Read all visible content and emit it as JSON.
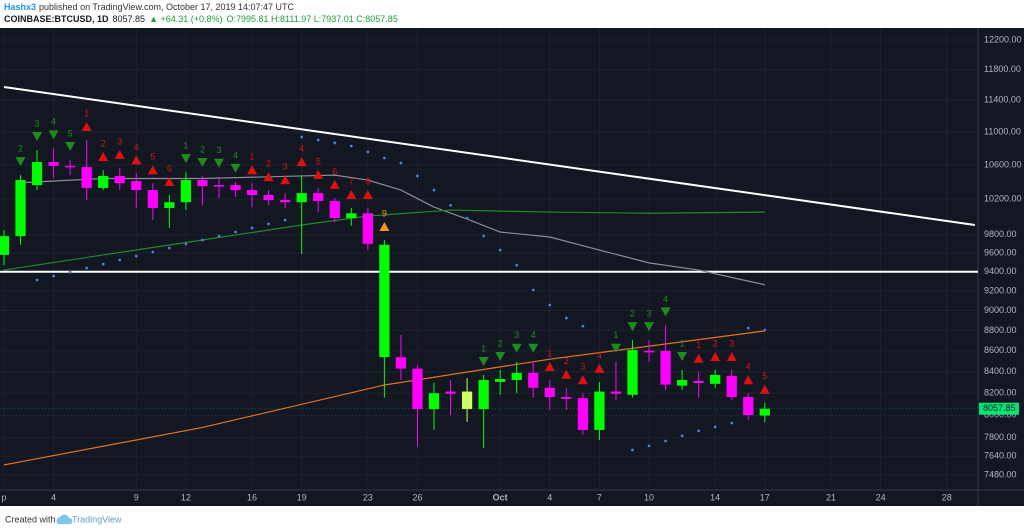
{
  "header": {
    "author": "Hashx3",
    "published": "published on TradingView.com, October 17, 2019 14:07:47 UTC",
    "symbol": "COINBASE:BTCUSD, 1D",
    "last": "8057.85",
    "change": "▲ +64.31 (+0.8%)",
    "ohlc": "O:7995.81 H:8111.97 L:7937.01 C:8057.85"
  },
  "footer": {
    "created": "Created with",
    "brand": "TradingView"
  },
  "chart_data": {
    "type": "candlestick",
    "log_scale": true,
    "grid": true,
    "xlim": [
      -0.24,
      58.89
    ],
    "xticks": [
      {
        "value": 0,
        "label": "p"
      },
      {
        "value": 3,
        "label": "4"
      },
      {
        "value": 8,
        "label": "9"
      },
      {
        "value": 11,
        "label": "12"
      },
      {
        "value": 15,
        "label": "16"
      },
      {
        "value": 18,
        "label": "19"
      },
      {
        "value": 22,
        "label": "23"
      },
      {
        "value": 25,
        "label": "26"
      },
      {
        "value": 30,
        "label": "Oct"
      },
      {
        "value": 33,
        "label": "4"
      },
      {
        "value": 36,
        "label": "7"
      },
      {
        "value": 39,
        "label": "10"
      },
      {
        "value": 43,
        "label": "14"
      },
      {
        "value": 46,
        "label": "17"
      },
      {
        "value": 50,
        "label": "21"
      },
      {
        "value": 53,
        "label": "24"
      },
      {
        "value": 57,
        "label": "28"
      }
    ],
    "ylim": [
      7354,
      12366
    ],
    "yticks": [
      {
        "value": 12200,
        "label": "12200.00"
      },
      {
        "value": 11800,
        "label": "11800.00"
      },
      {
        "value": 11400,
        "label": "11400.00"
      },
      {
        "value": 11000,
        "label": "11000.00"
      },
      {
        "value": 10600,
        "label": "10600.00"
      },
      {
        "value": 10200,
        "label": "10200.00"
      },
      {
        "value": 9800,
        "label": "9800.00"
      },
      {
        "value": 9600,
        "label": "9600.00"
      },
      {
        "value": 9400,
        "label": "9400.00"
      },
      {
        "value": 9200,
        "label": "9200.00"
      },
      {
        "value": 9000,
        "label": "9000.00"
      },
      {
        "value": 8800,
        "label": "8800.00"
      },
      {
        "value": 8600,
        "label": "8600.00"
      },
      {
        "value": 8400,
        "label": "8400.00"
      },
      {
        "value": 8200,
        "label": "8200.00"
      },
      {
        "value": 8000,
        "label": "8000.00"
      },
      {
        "value": 7800,
        "label": "7800.00"
      },
      {
        "value": 7640,
        "label": "7640.00"
      },
      {
        "value": 7480,
        "label": "7480.00"
      }
    ],
    "x": [
      0,
      1,
      2,
      3,
      4,
      5,
      6,
      7,
      8,
      9,
      10,
      11,
      12,
      13,
      14,
      15,
      16,
      17,
      18,
      19,
      20,
      21,
      22,
      23,
      24,
      25,
      26,
      27,
      28,
      29,
      30,
      31,
      32,
      33,
      34,
      35,
      36,
      37,
      38,
      39,
      40,
      41,
      42,
      43,
      44,
      45,
      46
    ],
    "open": [
      9580,
      9785,
      10363,
      10635,
      10590,
      10575,
      10330,
      10470,
      10410,
      10305,
      10100,
      10165,
      10422,
      10363,
      10363,
      10305,
      10248,
      10190,
      10165,
      10270,
      10180,
      9985,
      10040,
      9690,
      8540,
      8430,
      8055,
      8215,
      8215,
      8055,
      8305,
      8323,
      8390,
      8250,
      8165,
      8155,
      7868,
      8215,
      8185,
      8600,
      8600,
      8270,
      8314,
      8287,
      8360,
      8165,
      7995.81
    ],
    "high": [
      9852,
      10480,
      10780,
      10800,
      10659,
      10902,
      10540,
      10565,
      10500,
      10385,
      10248,
      10515,
      10470,
      10460,
      10400,
      10385,
      10305,
      10270,
      10480,
      10330,
      10215,
      10100,
      10100,
      9742,
      8755,
      8465,
      8295,
      8323,
      8340,
      8370,
      8417,
      8495,
      8495,
      8323,
      8250,
      8200,
      8305,
      8495,
      8705,
      8705,
      8850,
      8417,
      8400,
      8417,
      8417,
      8200,
      8111.97
    ],
    "low": [
      9470,
      9690,
      10305,
      10445,
      10480,
      10190,
      10305,
      10305,
      10100,
      9963,
      9875,
      10076,
      10130,
      10215,
      10225,
      10110,
      10130,
      10100,
      9590,
      10050,
      9940,
      9900,
      9633,
      8160,
      8323,
      7720,
      7868,
      8000,
      7940,
      7710,
      8185,
      8200,
      8160,
      8047,
      8047,
      7825,
      7780,
      8138,
      8160,
      8495,
      8230,
      8230,
      8160,
      8250,
      8138,
      7957,
      7937.01
    ],
    "close": [
      9785,
      10422,
      10635,
      10590,
      10575,
      10330,
      10470,
      10385,
      10305,
      10100,
      10165,
      10422,
      10350,
      10350,
      10305,
      10248,
      10190,
      10165,
      10270,
      10180,
      9985,
      10040,
      9700,
      8540,
      8430,
      8055,
      8200,
      8195,
      8055,
      8323,
      8332,
      8390,
      8250,
      8165,
      8148,
      7868,
      8215,
      8195,
      8608,
      8590,
      8280,
      8323,
      8295,
      8370,
      8165,
      8000,
      8057.85
    ],
    "colors": [
      "#00ff00",
      "#00ff00",
      "#00ff00",
      "#ff00ff",
      "#ff00ff",
      "#ff00ff",
      "#00ff00",
      "#ff00ff",
      "#ff00ff",
      "#ff00ff",
      "#00ff00",
      "#00ff00",
      "#ff00ff",
      "#ff00ff",
      "#ff00ff",
      "#ff00ff",
      "#ff00ff",
      "#ff00ff",
      "#00ff00",
      "#ff00ff",
      "#ff00ff",
      "#00ff00",
      "#ff00ff",
      "#00ff00",
      "#ff00ff",
      "#ff00ff",
      "#00ff00",
      "#ff00ff",
      "#ccff66",
      "#00ff00",
      "#00ff00",
      "#00ff00",
      "#ff00ff",
      "#ff00ff",
      "#ff00ff",
      "#ff00ff",
      "#00ff00",
      "#ff00ff",
      "#00ff00",
      "#ff00ff",
      "#ff00ff",
      "#00ff00",
      "#ff00ff",
      "#00ff00",
      "#ff00ff",
      "#ff00ff",
      "#00ff00"
    ],
    "last_price_color": "#00e676",
    "lines": [
      {
        "color": "#ffffff",
        "x": [
          0,
          58.7
        ],
        "values": [
          11572,
          9908
        ]
      },
      {
        "color": "#ffffff",
        "x": [
          -0.24,
          58.89
        ],
        "values": [
          9400,
          9400
        ]
      },
      {
        "color": "#8a8d96",
        "x": [
          1,
          6,
          12,
          18,
          20,
          22,
          24,
          26,
          28,
          30,
          33,
          36,
          39,
          42,
          45,
          46
        ],
        "values": [
          10390,
          10440,
          10440,
          10470,
          10480,
          10422,
          10305,
          10110,
          9975,
          9830,
          9775,
          9633,
          9495,
          9418,
          9302,
          9264
        ]
      },
      {
        "color": "#1f8a2a",
        "x": [
          0,
          6,
          12,
          18,
          22,
          27,
          33,
          39,
          46
        ],
        "values": [
          9418,
          9580,
          9742,
          9908,
          10008,
          10076,
          10053,
          10040,
          10053
        ]
      },
      {
        "color": "#e8731f",
        "x": [
          0,
          12,
          23,
          33,
          46
        ],
        "values": [
          7564,
          7890,
          8276,
          8520,
          8795
        ]
      }
    ],
    "sar": {
      "color": "#4a7fd6",
      "x": [
        2,
        3,
        4,
        5,
        6,
        7,
        8,
        9,
        10,
        11,
        12,
        13,
        14,
        15,
        16,
        17,
        18,
        19,
        20,
        21,
        22,
        23,
        24,
        25,
        26,
        27,
        28,
        29,
        30,
        31,
        32,
        33,
        34,
        35,
        38,
        39,
        40,
        41,
        42,
        43,
        44,
        45,
        46
      ],
      "values": [
        9313,
        9355,
        9397,
        9440,
        9482,
        9525,
        9568,
        9612,
        9655,
        9698,
        9742,
        9786,
        9830,
        9875,
        9920,
        9963,
        10939,
        10902,
        10866,
        10829,
        10757,
        10683,
        10624,
        10470,
        10305,
        10130,
        9985,
        9786,
        9633,
        9471,
        9209,
        9055,
        8923,
        8843,
        7693,
        7728,
        7771,
        7816,
        7860,
        7895,
        7930,
        8824,
        8804
      ]
    },
    "td": {
      "down_color": "#1e8c1e",
      "labels": [
        null,
        "2",
        "3",
        "4",
        "5",
        "1",
        "2",
        "3",
        "4",
        "5",
        "6",
        "1",
        "2",
        "3",
        "4",
        "1",
        "2",
        "3",
        "4",
        "5",
        "6",
        "7",
        "8",
        "9",
        null,
        null,
        null,
        null,
        null,
        "1",
        "2",
        "3",
        "4",
        "1",
        "2",
        "3",
        "4",
        "1",
        "2",
        "3",
        "4",
        "1",
        "1",
        "2",
        "3",
        "4",
        "5"
      ],
      "colors": [
        null,
        "#1e8c1e",
        "#1e8c1e",
        "#1e8c1e",
        "#1e8c1e",
        "#e01010",
        "#e01010",
        "#e01010",
        "#e01010",
        "#e01010",
        "#e01010",
        "#1e8c1e",
        "#1e8c1e",
        "#1e8c1e",
        "#1e8c1e",
        "#e01010",
        "#e01010",
        "#e01010",
        "#e01010",
        "#e01010",
        "#e01010",
        "#e01010",
        "#e01010",
        "#f7931a",
        null,
        null,
        null,
        null,
        null,
        "#1e8c1e",
        "#1e8c1e",
        "#1e8c1e",
        "#1e8c1e",
        "#e01010",
        "#e01010",
        "#e01010",
        "#e01010",
        "#1e8c1e",
        "#1e8c1e",
        "#1e8c1e",
        "#1e8c1e",
        "#1e8c1e",
        "#e01010",
        "#e01010",
        "#e01010",
        "#e01010",
        "#e01010"
      ]
    }
  }
}
